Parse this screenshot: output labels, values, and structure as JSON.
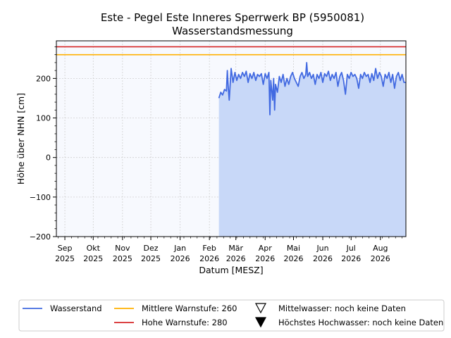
{
  "chart_data": {
    "type": "line",
    "title": "Este - Pegel Este Inneres Sperrwerk BP (5950081)",
    "subtitle": "Wasserstandsmessung",
    "xlabel": "Datum [MESZ]",
    "ylabel": "Höhe über NHN [cm]",
    "ylim": [
      -200,
      295
    ],
    "xlim": [
      "2025-08-23",
      "2026-08-28"
    ],
    "yticks": [
      -200,
      -100,
      0,
      100,
      200
    ],
    "ytick_labels": [
      "−200",
      "−100",
      "0",
      "100",
      "200"
    ],
    "xticks": [
      {
        "date": "2025-09-01",
        "l1": "Sep",
        "l2": "2025"
      },
      {
        "date": "2025-10-01",
        "l1": "Okt",
        "l2": "2025"
      },
      {
        "date": "2025-11-01",
        "l1": "Nov",
        "l2": "2025"
      },
      {
        "date": "2025-12-01",
        "l1": "Dez",
        "l2": "2025"
      },
      {
        "date": "2026-01-01",
        "l1": "Jan",
        "l2": "2026"
      },
      {
        "date": "2026-02-01",
        "l1": "Feb",
        "l2": "2026"
      },
      {
        "date": "2026-03-01",
        "l1": "Mär",
        "l2": "2026"
      },
      {
        "date": "2026-04-01",
        "l1": "Apr",
        "l2": "2026"
      },
      {
        "date": "2026-05-01",
        "l1": "Mai",
        "l2": "2026"
      },
      {
        "date": "2026-06-01",
        "l1": "Jun",
        "l2": "2026"
      },
      {
        "date": "2026-07-01",
        "l1": "Jul",
        "l2": "2026"
      },
      {
        "date": "2026-08-01",
        "l1": "Aug",
        "l2": "2026"
      }
    ],
    "grid": true,
    "legend_position": "bottom",
    "thresholds": [
      {
        "name": "Mittlere Warnstufe: 260",
        "value": 260,
        "color": "#ffb000"
      },
      {
        "name": "Hohe Warnstufe: 280",
        "value": 280,
        "color": "#d62728"
      }
    ],
    "markers": [
      {
        "name": "Mittelwasser: noch keine Daten",
        "symbol": "triangle-open"
      },
      {
        "name": "Höchstes Hochwasser: noch keine Daten",
        "symbol": "triangle-filled"
      }
    ],
    "series": [
      {
        "name": "Wasserstand",
        "color": "#4169e1",
        "fill": "#c8d8f8",
        "points": [
          [
            "2026-02-11",
            150
          ],
          [
            "2026-02-13",
            165
          ],
          [
            "2026-02-15",
            158
          ],
          [
            "2026-02-17",
            172
          ],
          [
            "2026-02-19",
            168
          ],
          [
            "2026-02-20",
            220
          ],
          [
            "2026-02-21",
            175
          ],
          [
            "2026-02-22",
            145
          ],
          [
            "2026-02-24",
            225
          ],
          [
            "2026-02-26",
            190
          ],
          [
            "2026-02-28",
            215
          ],
          [
            "2026-03-02",
            195
          ],
          [
            "2026-03-04",
            210
          ],
          [
            "2026-03-06",
            200
          ],
          [
            "2026-03-08",
            215
          ],
          [
            "2026-03-10",
            205
          ],
          [
            "2026-03-12",
            218
          ],
          [
            "2026-03-14",
            190
          ],
          [
            "2026-03-16",
            212
          ],
          [
            "2026-03-18",
            200
          ],
          [
            "2026-03-20",
            215
          ],
          [
            "2026-03-22",
            195
          ],
          [
            "2026-03-24",
            210
          ],
          [
            "2026-03-26",
            205
          ],
          [
            "2026-03-28",
            212
          ],
          [
            "2026-03-30",
            185
          ],
          [
            "2026-04-01",
            212
          ],
          [
            "2026-04-03",
            200
          ],
          [
            "2026-04-05",
            215
          ],
          [
            "2026-04-06",
            108
          ],
          [
            "2026-04-07",
            195
          ],
          [
            "2026-04-09",
            145
          ],
          [
            "2026-04-10",
            200
          ],
          [
            "2026-04-11",
            120
          ],
          [
            "2026-04-12",
            185
          ],
          [
            "2026-04-14",
            165
          ],
          [
            "2026-04-16",
            205
          ],
          [
            "2026-04-18",
            190
          ],
          [
            "2026-04-20",
            210
          ],
          [
            "2026-04-22",
            180
          ],
          [
            "2026-04-24",
            200
          ],
          [
            "2026-04-26",
            185
          ],
          [
            "2026-04-28",
            205
          ],
          [
            "2026-04-30",
            215
          ],
          [
            "2026-05-02",
            200
          ],
          [
            "2026-05-04",
            190
          ],
          [
            "2026-05-06",
            180
          ],
          [
            "2026-05-08",
            205
          ],
          [
            "2026-05-10",
            215
          ],
          [
            "2026-05-12",
            200
          ],
          [
            "2026-05-14",
            210
          ],
          [
            "2026-05-15",
            240
          ],
          [
            "2026-05-16",
            205
          ],
          [
            "2026-05-18",
            215
          ],
          [
            "2026-05-20",
            200
          ],
          [
            "2026-05-22",
            210
          ],
          [
            "2026-05-24",
            185
          ],
          [
            "2026-05-26",
            210
          ],
          [
            "2026-05-28",
            200
          ],
          [
            "2026-05-30",
            215
          ],
          [
            "2026-06-01",
            190
          ],
          [
            "2026-06-03",
            212
          ],
          [
            "2026-06-05",
            205
          ],
          [
            "2026-06-07",
            218
          ],
          [
            "2026-06-09",
            195
          ],
          [
            "2026-06-11",
            210
          ],
          [
            "2026-06-13",
            200
          ],
          [
            "2026-06-15",
            215
          ],
          [
            "2026-06-17",
            180
          ],
          [
            "2026-06-19",
            205
          ],
          [
            "2026-06-21",
            215
          ],
          [
            "2026-06-23",
            195
          ],
          [
            "2026-06-25",
            160
          ],
          [
            "2026-06-27",
            210
          ],
          [
            "2026-06-29",
            200
          ],
          [
            "2026-07-01",
            215
          ],
          [
            "2026-07-03",
            205
          ],
          [
            "2026-07-05",
            210
          ],
          [
            "2026-07-07",
            200
          ],
          [
            "2026-07-09",
            175
          ],
          [
            "2026-07-11",
            210
          ],
          [
            "2026-07-13",
            200
          ],
          [
            "2026-07-15",
            215
          ],
          [
            "2026-07-17",
            205
          ],
          [
            "2026-07-19",
            210
          ],
          [
            "2026-07-21",
            190
          ],
          [
            "2026-07-23",
            212
          ],
          [
            "2026-07-25",
            195
          ],
          [
            "2026-07-27",
            225
          ],
          [
            "2026-07-29",
            200
          ],
          [
            "2026-07-31",
            215
          ],
          [
            "2026-08-02",
            205
          ],
          [
            "2026-08-04",
            180
          ],
          [
            "2026-08-06",
            210
          ],
          [
            "2026-08-08",
            200
          ],
          [
            "2026-08-10",
            215
          ],
          [
            "2026-08-12",
            190
          ],
          [
            "2026-08-14",
            210
          ],
          [
            "2026-08-16",
            175
          ],
          [
            "2026-08-18",
            205
          ],
          [
            "2026-08-20",
            215
          ],
          [
            "2026-08-22",
            195
          ],
          [
            "2026-08-24",
            210
          ],
          [
            "2026-08-26",
            190
          ],
          [
            "2026-08-28",
            190
          ]
        ]
      }
    ]
  }
}
